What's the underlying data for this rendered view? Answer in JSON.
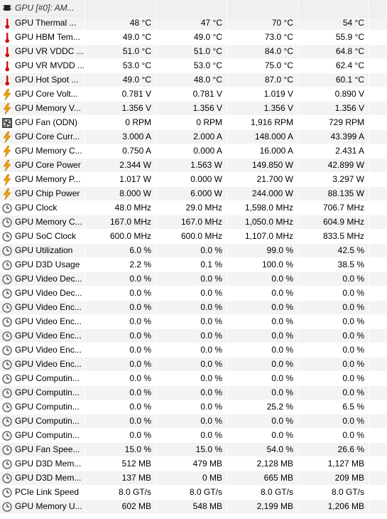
{
  "header": {
    "title": "GPU [#0]: AM...",
    "icon": "chip-icon"
  },
  "rows": [
    {
      "icon": "thermometer",
      "label": "GPU Thermal ...",
      "current": "48 °C",
      "min": "47 °C",
      "max": "70 °C",
      "avg": "54 °C"
    },
    {
      "icon": "thermometer",
      "label": "GPU HBM Tem...",
      "current": "49.0 °C",
      "min": "49.0 °C",
      "max": "73.0 °C",
      "avg": "55.9 °C"
    },
    {
      "icon": "thermometer",
      "label": "GPU VR VDDC ...",
      "current": "51.0 °C",
      "min": "51.0 °C",
      "max": "84.0 °C",
      "avg": "64.8 °C"
    },
    {
      "icon": "thermometer",
      "label": "GPU VR MVDD ...",
      "current": "53.0 °C",
      "min": "53.0 °C",
      "max": "75.0 °C",
      "avg": "62.4 °C"
    },
    {
      "icon": "thermometer",
      "label": "GPU Hot Spot ...",
      "current": "49.0 °C",
      "min": "48.0 °C",
      "max": "87.0 °C",
      "avg": "60.1 °C"
    },
    {
      "icon": "lightning",
      "label": "GPU Core Volt...",
      "current": "0.781 V",
      "min": "0.781 V",
      "max": "1.019 V",
      "avg": "0.890 V"
    },
    {
      "icon": "lightning",
      "label": "GPU Memory V...",
      "current": "1.356 V",
      "min": "1.356 V",
      "max": "1.356 V",
      "avg": "1.356 V"
    },
    {
      "icon": "fan",
      "label": "GPU Fan (ODN)",
      "current": "0 RPM",
      "min": "0 RPM",
      "max": "1,916 RPM",
      "avg": "729 RPM"
    },
    {
      "icon": "lightning",
      "label": "GPU Core Curr...",
      "current": "3.000 A",
      "min": "2.000 A",
      "max": "148.000 A",
      "avg": "43.399 A"
    },
    {
      "icon": "lightning",
      "label": "GPU Memory C...",
      "current": "0.750 A",
      "min": "0.000 A",
      "max": "16.000 A",
      "avg": "2.431 A"
    },
    {
      "icon": "lightning",
      "label": "GPU Core Power",
      "current": "2.344 W",
      "min": "1.563 W",
      "max": "149.850 W",
      "avg": "42.899 W"
    },
    {
      "icon": "lightning",
      "label": "GPU Memory P...",
      "current": "1.017 W",
      "min": "0.000 W",
      "max": "21.700 W",
      "avg": "3.297 W"
    },
    {
      "icon": "lightning",
      "label": "GPU Chip Power",
      "current": "8.000 W",
      "min": "6.000 W",
      "max": "244.000 W",
      "avg": "88.135 W"
    },
    {
      "icon": "clock",
      "label": "GPU Clock",
      "current": "48.0 MHz",
      "min": "29.0 MHz",
      "max": "1,598.0 MHz",
      "avg": "706.7 MHz"
    },
    {
      "icon": "clock",
      "label": "GPU Memory C...",
      "current": "167.0 MHz",
      "min": "167.0 MHz",
      "max": "1,050.0 MHz",
      "avg": "604.9 MHz"
    },
    {
      "icon": "clock",
      "label": "GPU SoC Clock",
      "current": "600.0 MHz",
      "min": "600.0 MHz",
      "max": "1,107.0 MHz",
      "avg": "833.5 MHz"
    },
    {
      "icon": "clock",
      "label": "GPU Utilization",
      "current": "6.0 %",
      "min": "0.0 %",
      "max": "99.0 %",
      "avg": "42.5 %"
    },
    {
      "icon": "clock",
      "label": "GPU D3D Usage",
      "current": "2.2 %",
      "min": "0.1 %",
      "max": "100.0 %",
      "avg": "38.5 %"
    },
    {
      "icon": "clock",
      "label": "GPU Video Dec...",
      "current": "0.0 %",
      "min": "0.0 %",
      "max": "0.0 %",
      "avg": "0.0 %"
    },
    {
      "icon": "clock",
      "label": "GPU Video Dec...",
      "current": "0.0 %",
      "min": "0.0 %",
      "max": "0.0 %",
      "avg": "0.0 %"
    },
    {
      "icon": "clock",
      "label": "GPU Video Enc...",
      "current": "0.0 %",
      "min": "0.0 %",
      "max": "0.0 %",
      "avg": "0.0 %"
    },
    {
      "icon": "clock",
      "label": "GPU Video Enc...",
      "current": "0.0 %",
      "min": "0.0 %",
      "max": "0.0 %",
      "avg": "0.0 %"
    },
    {
      "icon": "clock",
      "label": "GPU Video Enc...",
      "current": "0.0 %",
      "min": "0.0 %",
      "max": "0.0 %",
      "avg": "0.0 %"
    },
    {
      "icon": "clock",
      "label": "GPU Video Enc...",
      "current": "0.0 %",
      "min": "0.0 %",
      "max": "0.0 %",
      "avg": "0.0 %"
    },
    {
      "icon": "clock",
      "label": "GPU Video Enc...",
      "current": "0.0 %",
      "min": "0.0 %",
      "max": "0.0 %",
      "avg": "0.0 %"
    },
    {
      "icon": "clock",
      "label": "GPU Computin...",
      "current": "0.0 %",
      "min": "0.0 %",
      "max": "0.0 %",
      "avg": "0.0 %"
    },
    {
      "icon": "clock",
      "label": "GPU Computin...",
      "current": "0.0 %",
      "min": "0.0 %",
      "max": "0.0 %",
      "avg": "0.0 %"
    },
    {
      "icon": "clock",
      "label": "GPU Computin...",
      "current": "0.0 %",
      "min": "0.0 %",
      "max": "25.2 %",
      "avg": "6.5 %"
    },
    {
      "icon": "clock",
      "label": "GPU Computin...",
      "current": "0.0 %",
      "min": "0.0 %",
      "max": "0.0 %",
      "avg": "0.0 %"
    },
    {
      "icon": "clock",
      "label": "GPU Computin...",
      "current": "0.0 %",
      "min": "0.0 %",
      "max": "0.0 %",
      "avg": "0.0 %"
    },
    {
      "icon": "clock",
      "label": "GPU Fan Spee...",
      "current": "15.0 %",
      "min": "15.0 %",
      "max": "54.0 %",
      "avg": "26.6 %"
    },
    {
      "icon": "clock",
      "label": "GPU D3D Mem...",
      "current": "512 MB",
      "min": "479 MB",
      "max": "2,128 MB",
      "avg": "1,127 MB"
    },
    {
      "icon": "clock",
      "label": "GPU D3D Mem...",
      "current": "137 MB",
      "min": "0 MB",
      "max": "665 MB",
      "avg": "209 MB"
    },
    {
      "icon": "clock",
      "label": "PCIe Link Speed",
      "current": "8.0 GT/s",
      "min": "8.0 GT/s",
      "max": "8.0 GT/s",
      "avg": "8.0 GT/s"
    },
    {
      "icon": "clock",
      "label": "GPU Memory U...",
      "current": "602 MB",
      "min": "548 MB",
      "max": "2,199 MB",
      "avg": "1,206 MB"
    }
  ],
  "colors": {
    "thermometer": "#cc1111",
    "lightning": "#f0a000",
    "clock": "#555555",
    "row_alt": "#f3f3f3",
    "header": "#f0f0f0"
  }
}
